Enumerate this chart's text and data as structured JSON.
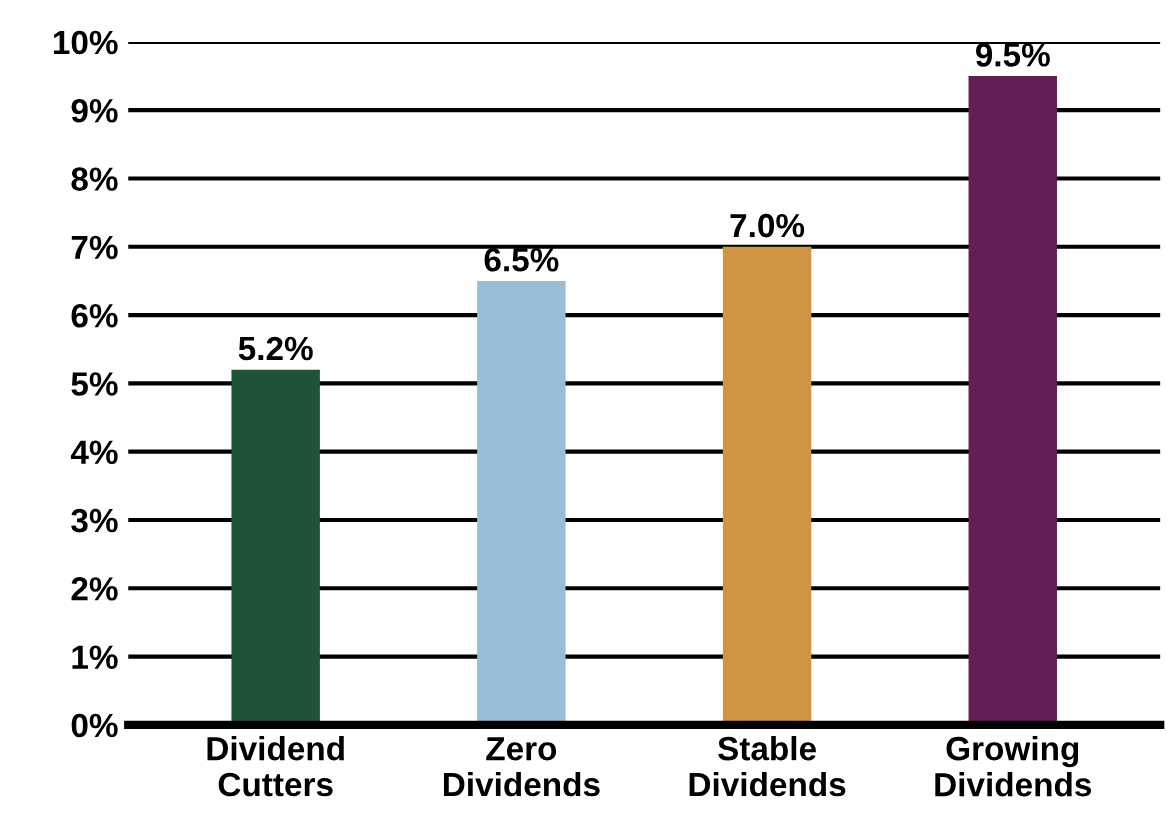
{
  "chart_data": {
    "type": "bar",
    "categories": [
      "Dividend Cutters",
      "Zero Dividends",
      "Stable Dividends",
      "Growing Dividends"
    ],
    "values": [
      5.2,
      6.5,
      7.0,
      9.5
    ],
    "colors": [
      "#1f5439",
      "#98bdd6",
      "#cf9545",
      "#621f57"
    ],
    "value_labels": [
      "5.2%",
      "6.5%",
      "7.0%",
      "9.5%"
    ],
    "ylim": [
      0,
      10
    ],
    "yticks": [
      {
        "value": 0,
        "label": "0%"
      },
      {
        "value": 1,
        "label": "1%"
      },
      {
        "value": 2,
        "label": "2%"
      },
      {
        "value": 3,
        "label": "3%"
      },
      {
        "value": 4,
        "label": "4%"
      },
      {
        "value": 5,
        "label": "5%"
      },
      {
        "value": 6,
        "label": "6%"
      },
      {
        "value": 7,
        "label": "7%"
      },
      {
        "value": 8,
        "label": "8%"
      },
      {
        "value": 9,
        "label": "9%"
      },
      {
        "value": 10,
        "label": "10%"
      }
    ],
    "grid": "y"
  }
}
